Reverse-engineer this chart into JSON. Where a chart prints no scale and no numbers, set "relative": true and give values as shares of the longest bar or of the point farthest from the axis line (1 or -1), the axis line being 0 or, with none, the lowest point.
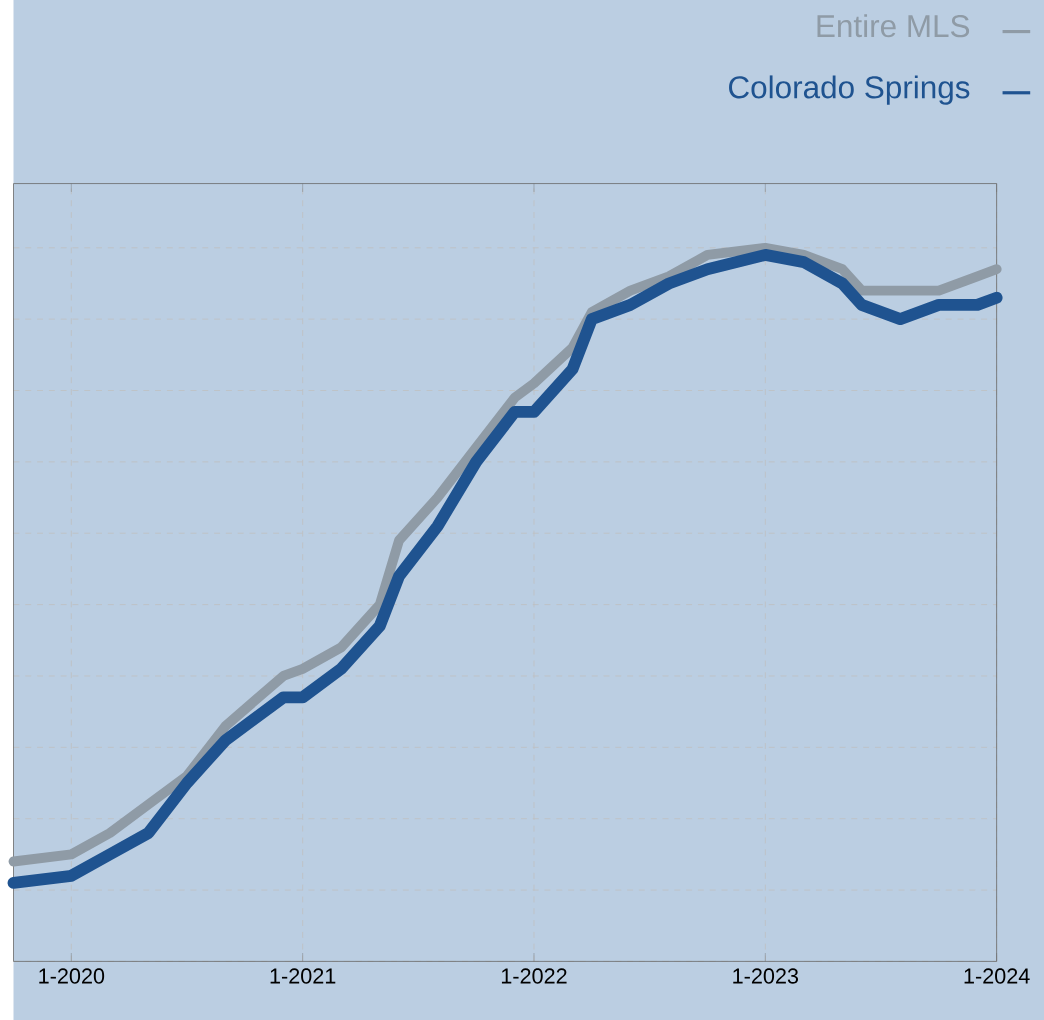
{
  "chart_data": {
    "type": "line",
    "relative": true,
    "x": [
      "2019-10",
      "2020-01",
      "2020-03",
      "2020-05",
      "2020-07",
      "2020-09",
      "2020-12",
      "2021-01",
      "2021-03",
      "2021-05",
      "2021-06",
      "2021-08",
      "2021-10",
      "2021-12",
      "2022-01",
      "2022-03",
      "2022-04",
      "2022-06",
      "2022-08",
      "2022-10",
      "2023-01",
      "2023-03",
      "2023-05",
      "2023-06",
      "2023-08",
      "2023-10",
      "2023-12",
      "2024-01"
    ],
    "series": [
      {
        "name": "Entire MLS",
        "color": "#8f9ba6",
        "values": [
          0.14,
          0.15,
          0.18,
          0.22,
          0.26,
          0.33,
          0.4,
          0.41,
          0.44,
          0.5,
          0.59,
          0.65,
          0.72,
          0.79,
          0.81,
          0.86,
          0.91,
          0.94,
          0.96,
          0.99,
          1.0,
          0.99,
          0.97,
          0.94,
          0.94,
          0.94,
          0.96,
          0.97
        ]
      },
      {
        "name": "Colorado Springs",
        "color": "#1f5390",
        "values": [
          0.11,
          0.12,
          0.15,
          0.18,
          0.25,
          0.31,
          0.37,
          0.37,
          0.41,
          0.47,
          0.54,
          0.61,
          0.7,
          0.77,
          0.77,
          0.83,
          0.9,
          0.92,
          0.95,
          0.97,
          0.99,
          0.98,
          0.95,
          0.92,
          0.9,
          0.92,
          0.92,
          0.93
        ]
      }
    ],
    "xlim": [
      "2019-10",
      "2024-01"
    ],
    "xticks": [
      {
        "value": "2020-01",
        "label": "1-2020"
      },
      {
        "value": "2021-01",
        "label": "1-2021"
      },
      {
        "value": "2022-01",
        "label": "1-2022"
      },
      {
        "value": "2023-01",
        "label": "1-2023"
      },
      {
        "value": "2024-01",
        "label": "1-2024"
      }
    ],
    "grid": true,
    "legend": "top right",
    "marker": "none",
    "line_style": "solid"
  }
}
